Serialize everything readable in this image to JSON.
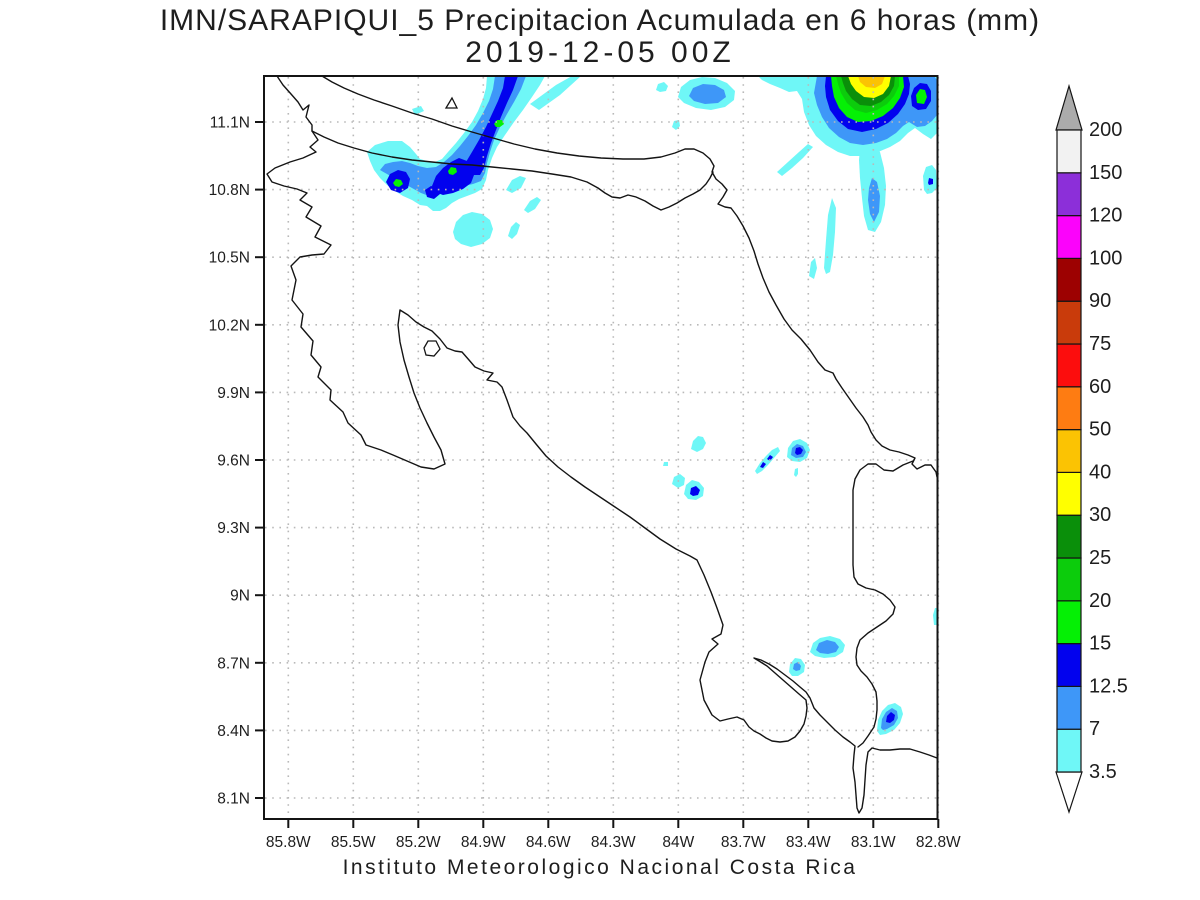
{
  "title": {
    "line1": "IMN/SARAPIQUI_5 Precipitacion Acumulada en 6 horas (mm)",
    "line2": "2019-12-05 00Z"
  },
  "footer": {
    "text": "Instituto Meteorologico Nacional Costa Rica"
  },
  "axes": {
    "lat_labels": [
      "11.1N",
      "10.8N",
      "10.5N",
      "10.2N",
      "9.9N",
      "9.6N",
      "9.3N",
      "9N",
      "8.7N",
      "8.4N",
      "8.1N"
    ],
    "lon_labels": [
      "85.8W",
      "85.5W",
      "85.2W",
      "84.9W",
      "84.6W",
      "84.3W",
      "84W",
      "83.7W",
      "83.4W",
      "83.1W",
      "82.8W"
    ]
  },
  "colorbar": {
    "units": "mm",
    "labels_bottom_to_top": [
      "3.5",
      "7",
      "12.5",
      "15",
      "20",
      "25",
      "30",
      "40",
      "50",
      "60",
      "75",
      "90",
      "100",
      "120",
      "150",
      "200"
    ],
    "segment_colors_bottom_to_top": [
      "#6FF7F7",
      "#3E97F8",
      "#0202EE",
      "#05F005",
      "#0CCC0C",
      "#0A8F0A",
      "#FFFF00",
      "#FBC303",
      "#FE7C12",
      "#FC0D0D",
      "#C93B0B",
      "#9D0101",
      "#FB03FB",
      "#8C2FD9",
      "#F2F2F2"
    ],
    "arrow_top_color": "#ABABAB",
    "arrow_bottom_color": "#FFFFFF"
  },
  "map_info": {
    "region": "Costa Rica",
    "field": "6-hour accumulated precipitation",
    "levels_mm": [
      3.5,
      7,
      12.5,
      15,
      20,
      25,
      30,
      40,
      50,
      60,
      75,
      90,
      100,
      120,
      150,
      200
    ],
    "features": [
      {
        "name": "nw-band",
        "desc": "SW-NE oriented rain band across the Nicaragua border near 10.8-11.3N, 84.8-85.4W",
        "max_level": "15-20 mm"
      },
      {
        "name": "ne-storm-cell",
        "desc": "Strong cell near 11.2N 83.1W at Caribbean coast",
        "max_level": "40-50 mm"
      },
      {
        "name": "ne-secondary-cell",
        "desc": "Cell near 11.2N 82.9W",
        "max_level": "15-20 mm"
      },
      {
        "name": "caribbean-streaks",
        "desc": "Light streaks 10.6-11.1N, 82.8-83.6W",
        "max_level": "7-12.5 mm"
      },
      {
        "name": "central-spots",
        "desc": "Small showers near 9.4-9.7N, 83.4-84.0W",
        "max_level": "12.5-15 mm"
      },
      {
        "name": "south-spots",
        "desc": "Showers near 8.4-8.8N, 83.0-83.3W",
        "max_level": "12.5-15 mm"
      }
    ]
  },
  "style": {
    "line_color": "#141414",
    "grid_color": "#b9b9b9",
    "background": "#ffffff",
    "text_color": "#1e1e1e"
  }
}
